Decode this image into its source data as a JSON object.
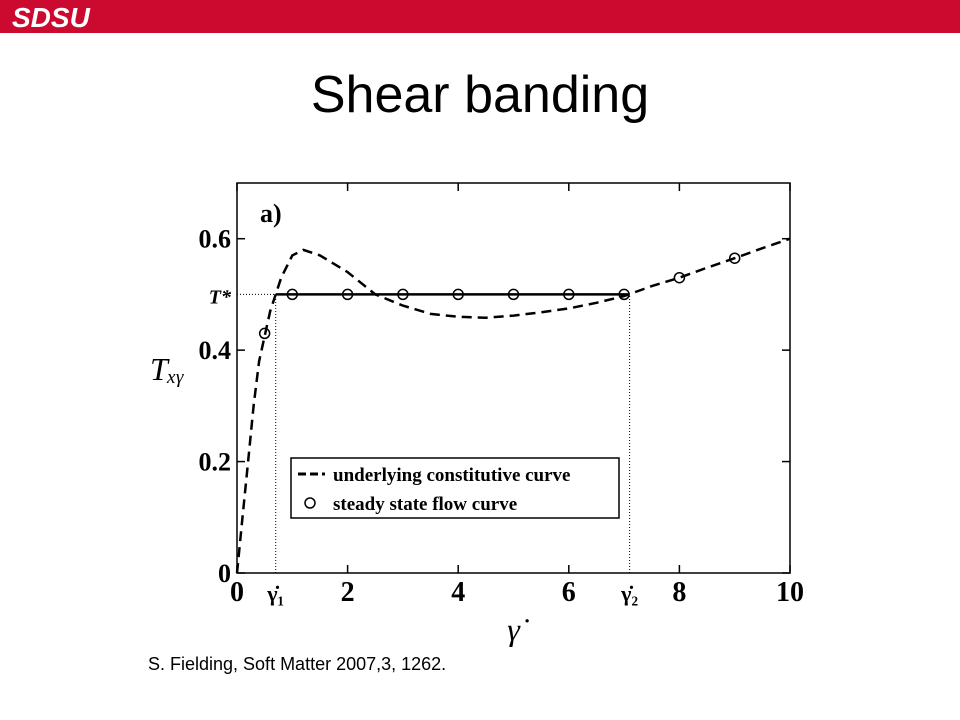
{
  "header": {
    "logo": "SDSU"
  },
  "title": "Shear banding",
  "chart_data": {
    "type": "line",
    "panel_label": "a)",
    "xlabel": "γ̇",
    "ylabel": "Tₓᵧ",
    "xlim": [
      0,
      10
    ],
    "ylim": [
      0,
      0.7
    ],
    "xticks": [
      0,
      {
        "value": 0.7,
        "label": "γ̇₁"
      },
      2,
      4,
      6,
      {
        "value": 7.1,
        "label": "γ̇₂"
      },
      8,
      10
    ],
    "yticks": [
      0,
      0.2,
      0.4,
      {
        "value": 0.5,
        "label": "T*"
      },
      0.6
    ],
    "series": [
      {
        "name": "underlying constitutive curve",
        "color": "#000000",
        "dash": true,
        "x": [
          0,
          0.1,
          0.2,
          0.3,
          0.4,
          0.6,
          0.8,
          1.0,
          1.2,
          1.5,
          2,
          2.5,
          3,
          3.5,
          4,
          4.5,
          5,
          5.5,
          6,
          6.5,
          7,
          7.5,
          8,
          8.5,
          9,
          9.5,
          10
        ],
        "values": [
          0,
          0.1,
          0.2,
          0.3,
          0.38,
          0.47,
          0.53,
          0.57,
          0.58,
          0.57,
          0.54,
          0.5,
          0.48,
          0.465,
          0.46,
          0.458,
          0.462,
          0.468,
          0.475,
          0.485,
          0.497,
          0.515,
          0.53,
          0.548,
          0.565,
          0.583,
          0.6
        ]
      },
      {
        "name": "steady state flow curve",
        "color": "#000000",
        "marker": "circle",
        "x": [
          0.5,
          1,
          2,
          3,
          4,
          5,
          6,
          7,
          8,
          9
        ],
        "values": [
          0.43,
          0.5,
          0.5,
          0.5,
          0.5,
          0.5,
          0.5,
          0.5,
          0.53,
          0.565
        ]
      },
      {
        "color": "#000000",
        "x": [
          0.7,
          7.1
        ],
        "values": [
          0.5,
          0.5
        ]
      }
    ]
  },
  "citation": "S. Fielding, Soft Matter 2007,3, 1262."
}
